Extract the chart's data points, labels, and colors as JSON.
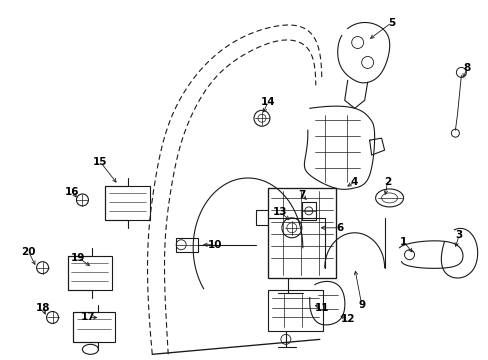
{
  "background_color": "#ffffff",
  "line_color": "#1a1a1a",
  "fig_width": 4.89,
  "fig_height": 3.6,
  "dpi": 100,
  "label_fs": 7.5,
  "lw": 0.8
}
